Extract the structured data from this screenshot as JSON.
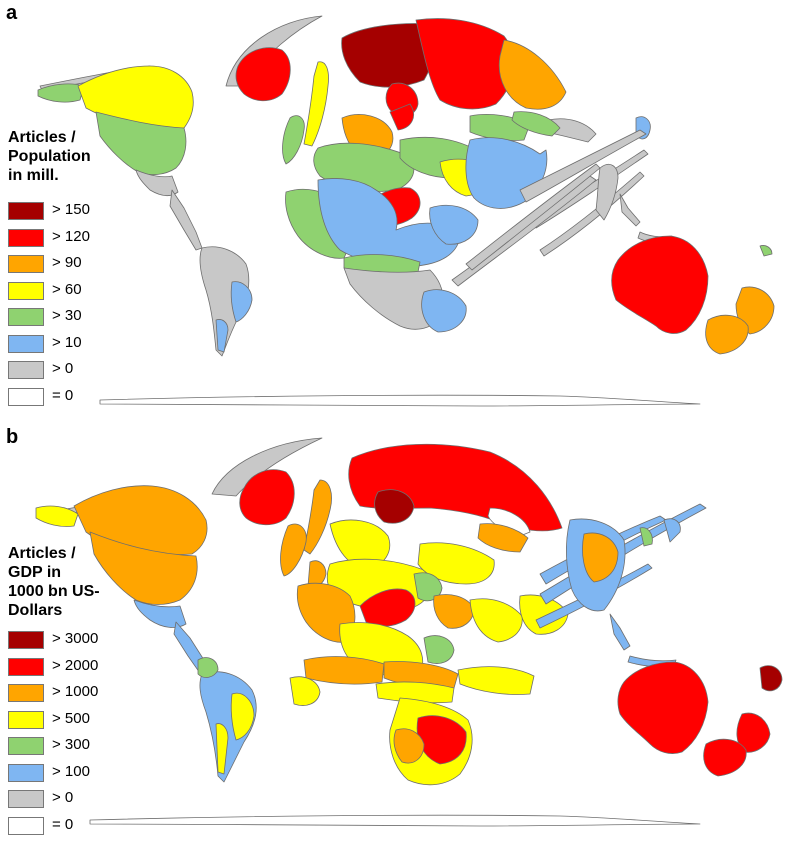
{
  "panels": [
    {
      "letter": "a",
      "legend_title": [
        "Articles /",
        "Population",
        "in mill."
      ],
      "legend": [
        {
          "label": "> 150",
          "color": "#a50000"
        },
        {
          "label": "> 120",
          "color": "#ff0000"
        },
        {
          "label": "> 90",
          "color": "#ffa500"
        },
        {
          "label": "> 60",
          "color": "#ffff00"
        },
        {
          "label": "> 30",
          "color": "#8fd270"
        },
        {
          "label": "> 10",
          "color": "#7fb6f2"
        },
        {
          "label": "> 0",
          "color": "#c8c8c8"
        },
        {
          "label": "= 0",
          "color": "#ffffff"
        }
      ]
    },
    {
      "letter": "b",
      "legend_title": [
        "Articles /",
        "GDP in",
        "1000 bn US-",
        "Dollars"
      ],
      "legend": [
        {
          "label": "> 3000",
          "color": "#a50000"
        },
        {
          "label": "> 2000",
          "color": "#ff0000"
        },
        {
          "label": "> 1000",
          "color": "#ffa500"
        },
        {
          "label": "> 500",
          "color": "#ffff00"
        },
        {
          "label": "> 300",
          "color": "#8fd270"
        },
        {
          "label": "> 100",
          "color": "#7fb6f2"
        },
        {
          "label": "> 0",
          "color": "#c8c8c8"
        },
        {
          "label": "= 0",
          "color": "#ffffff"
        }
      ]
    }
  ]
}
